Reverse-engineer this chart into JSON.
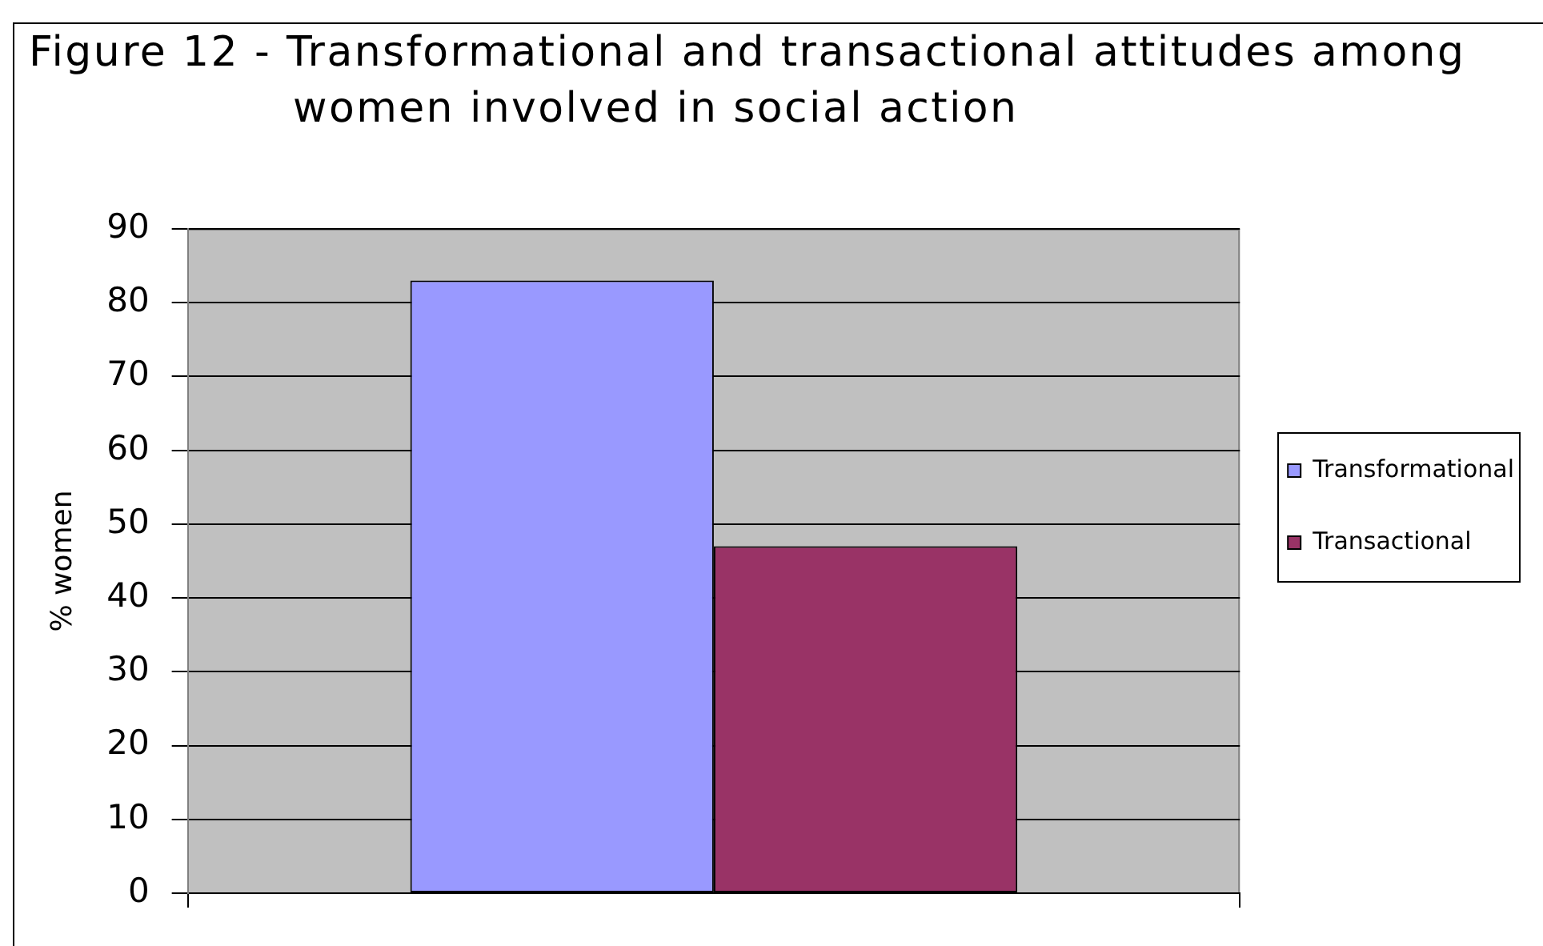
{
  "chart_data": {
    "type": "bar",
    "title": "Figure 12 - Transformational and transactional attitudes among women involved in social action",
    "ylabel": "% women",
    "categories": [
      null
    ],
    "series": [
      {
        "name": "Transformational",
        "color": "#9999ff",
        "values": [
          83
        ]
      },
      {
        "name": "Transactional",
        "color": "#993366",
        "values": [
          47
        ]
      }
    ],
    "ylim": [
      0,
      90
    ],
    "yticks": [
      0,
      10,
      20,
      30,
      40,
      50,
      60,
      70,
      80,
      90
    ],
    "grid": "y",
    "legend": "right"
  }
}
